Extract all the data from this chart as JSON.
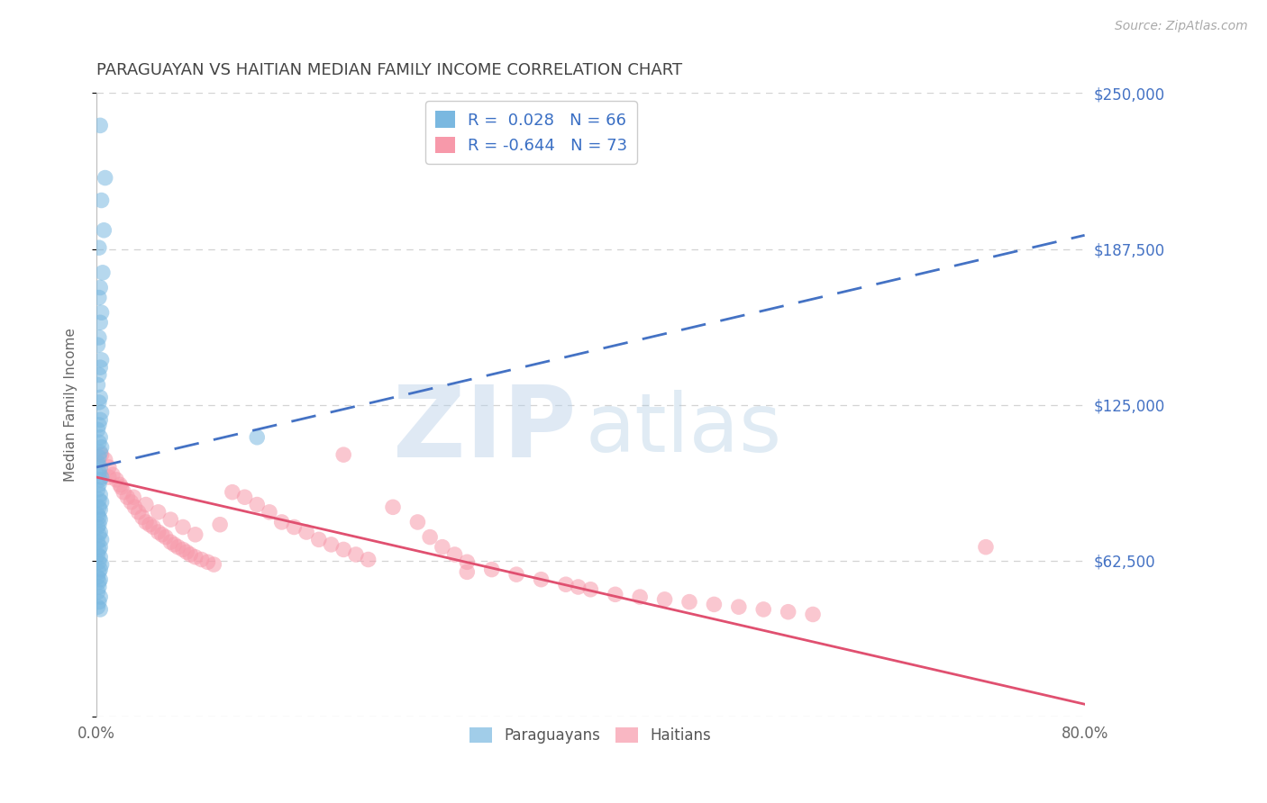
{
  "title": "PARAGUAYAN VS HAITIAN MEDIAN FAMILY INCOME CORRELATION CHART",
  "source": "Source: ZipAtlas.com",
  "ylabel": "Median Family Income",
  "xlim_min": 0.0,
  "xlim_max": 0.8,
  "ylim_min": 0,
  "ylim_max": 250000,
  "yticks": [
    0,
    62500,
    125000,
    187500,
    250000
  ],
  "ytick_labels": [
    "",
    "$62,500",
    "$125,000",
    "$187,500",
    "$250,000"
  ],
  "xtick_vals": [
    0.0,
    0.8
  ],
  "xtick_labels": [
    "0.0%",
    "80.0%"
  ],
  "paraguayan_color": "#7ab8e0",
  "haitian_color": "#f799aa",
  "paraguayan_R": 0.028,
  "paraguayan_N": 66,
  "haitian_R": -0.644,
  "haitian_N": 73,
  "watermark_zip": "ZIP",
  "watermark_atlas": "atlas",
  "background_color": "#ffffff",
  "grid_color": "#c8c8c8",
  "title_color": "#444444",
  "ytick_color": "#4472c4",
  "xtick_color": "#666666",
  "trendline_blue": "#4472c4",
  "trendline_pink": "#e05070",
  "para_line_x0": 0.0,
  "para_line_y0": 100000,
  "para_line_x1": 0.8,
  "para_line_y1": 193000,
  "haiti_line_x0": 0.0,
  "haiti_line_y0": 96000,
  "haiti_line_x1": 0.8,
  "haiti_line_y1": 5000,
  "paraguayan_scatter_x": [
    0.003,
    0.007,
    0.004,
    0.006,
    0.002,
    0.005,
    0.003,
    0.002,
    0.004,
    0.003,
    0.002,
    0.001,
    0.004,
    0.003,
    0.002,
    0.001,
    0.003,
    0.002,
    0.004,
    0.003,
    0.002,
    0.001,
    0.003,
    0.002,
    0.004,
    0.003,
    0.002,
    0.001,
    0.003,
    0.002,
    0.004,
    0.003,
    0.002,
    0.001,
    0.003,
    0.002,
    0.004,
    0.002,
    0.003,
    0.001,
    0.002,
    0.003,
    0.002,
    0.001,
    0.003,
    0.002,
    0.004,
    0.001,
    0.003,
    0.002,
    0.001,
    0.003,
    0.002,
    0.004,
    0.003,
    0.002,
    0.001,
    0.003,
    0.002,
    0.13,
    0.002,
    0.001,
    0.003,
    0.002,
    0.001,
    0.003
  ],
  "paraguayan_scatter_y": [
    237000,
    216000,
    207000,
    195000,
    188000,
    178000,
    172000,
    168000,
    162000,
    158000,
    152000,
    149000,
    143000,
    140000,
    137000,
    133000,
    128000,
    126000,
    122000,
    119000,
    117000,
    115000,
    112000,
    110000,
    108000,
    106000,
    104000,
    102000,
    100000,
    98000,
    96000,
    95000,
    93000,
    91000,
    89000,
    87000,
    86000,
    84000,
    83000,
    81000,
    80000,
    79000,
    77000,
    76000,
    74000,
    73000,
    71000,
    70000,
    68000,
    67000,
    65000,
    64000,
    62000,
    61000,
    59000,
    58000,
    56000,
    55000,
    54000,
    112000,
    52000,
    50000,
    48000,
    46000,
    44000,
    43000
  ],
  "haitian_scatter_x": [
    0.004,
    0.007,
    0.01,
    0.013,
    0.016,
    0.019,
    0.022,
    0.025,
    0.028,
    0.031,
    0.034,
    0.037,
    0.04,
    0.043,
    0.046,
    0.05,
    0.053,
    0.056,
    0.06,
    0.063,
    0.066,
    0.07,
    0.073,
    0.076,
    0.08,
    0.085,
    0.09,
    0.095,
    0.1,
    0.11,
    0.12,
    0.13,
    0.14,
    0.15,
    0.16,
    0.17,
    0.18,
    0.19,
    0.2,
    0.21,
    0.22,
    0.24,
    0.26,
    0.27,
    0.28,
    0.29,
    0.3,
    0.32,
    0.34,
    0.36,
    0.38,
    0.39,
    0.4,
    0.42,
    0.44,
    0.46,
    0.48,
    0.5,
    0.52,
    0.54,
    0.56,
    0.58,
    0.01,
    0.02,
    0.03,
    0.04,
    0.05,
    0.06,
    0.07,
    0.08,
    0.72,
    0.2,
    0.3
  ],
  "haitian_scatter_y": [
    105000,
    103000,
    100000,
    97000,
    95000,
    93000,
    90000,
    88000,
    86000,
    84000,
    82000,
    80000,
    78000,
    77000,
    76000,
    74000,
    73000,
    72000,
    70000,
    69000,
    68000,
    67000,
    66000,
    65000,
    64000,
    63000,
    62000,
    61000,
    77000,
    90000,
    88000,
    85000,
    82000,
    78000,
    76000,
    74000,
    71000,
    69000,
    67000,
    65000,
    63000,
    84000,
    78000,
    72000,
    68000,
    65000,
    62000,
    59000,
    57000,
    55000,
    53000,
    52000,
    51000,
    49000,
    48000,
    47000,
    46000,
    45000,
    44000,
    43000,
    42000,
    41000,
    96000,
    92000,
    88000,
    85000,
    82000,
    79000,
    76000,
    73000,
    68000,
    105000,
    58000
  ]
}
